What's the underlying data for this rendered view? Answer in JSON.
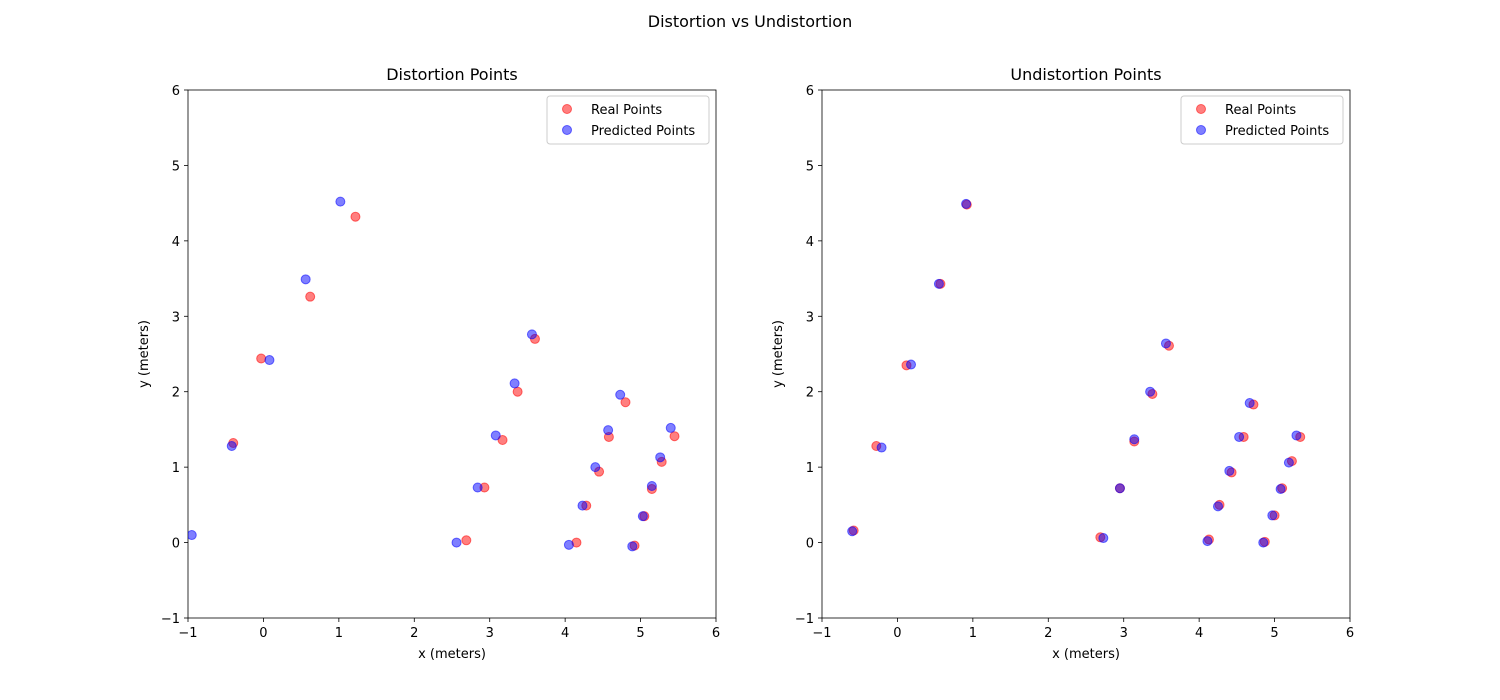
{
  "figure": {
    "suptitle": "Distortion vs Undistortion"
  },
  "chart_data": [
    {
      "type": "scatter",
      "title": "Distortion Points",
      "xlabel": "x (meters)",
      "ylabel": "y (meters)",
      "xlim": [
        -1,
        6
      ],
      "ylim": [
        -1,
        6
      ],
      "xticks": [
        "−1",
        "0",
        "1",
        "2",
        "3",
        "4",
        "5",
        "6"
      ],
      "yticks": [
        "−1",
        "0",
        "1",
        "2",
        "3",
        "4",
        "5",
        "6"
      ],
      "grid": false,
      "legend_position": "top-right",
      "series": [
        {
          "name": "Real Points",
          "color": "#ff0000",
          "points": [
            [
              -0.4,
              1.32
            ],
            [
              -0.03,
              2.44
            ],
            [
              0.62,
              3.26
            ],
            [
              1.22,
              4.32
            ],
            [
              2.69,
              0.03
            ],
            [
              2.93,
              0.73
            ],
            [
              3.17,
              1.36
            ],
            [
              3.37,
              2.0
            ],
            [
              3.6,
              2.7
            ],
            [
              4.15,
              0.0
            ],
            [
              4.28,
              0.49
            ],
            [
              4.45,
              0.94
            ],
            [
              4.58,
              1.4
            ],
            [
              4.8,
              1.86
            ],
            [
              4.92,
              -0.04
            ],
            [
              5.05,
              0.35
            ],
            [
              5.15,
              0.71
            ],
            [
              5.28,
              1.07
            ],
            [
              5.45,
              1.41
            ]
          ]
        },
        {
          "name": "Predicted Points",
          "color": "#0000ff",
          "points": [
            [
              -0.95,
              0.1
            ],
            [
              -0.42,
              1.28
            ],
            [
              0.08,
              2.42
            ],
            [
              0.56,
              3.49
            ],
            [
              1.02,
              4.52
            ],
            [
              2.56,
              0.0
            ],
            [
              2.84,
              0.73
            ],
            [
              3.08,
              1.42
            ],
            [
              3.33,
              2.11
            ],
            [
              3.56,
              2.76
            ],
            [
              4.05,
              -0.03
            ],
            [
              4.23,
              0.49
            ],
            [
              4.4,
              1.0
            ],
            [
              4.57,
              1.49
            ],
            [
              4.73,
              1.96
            ],
            [
              4.89,
              -0.05
            ],
            [
              5.03,
              0.35
            ],
            [
              5.15,
              0.75
            ],
            [
              5.26,
              1.13
            ],
            [
              5.4,
              1.52
            ]
          ]
        }
      ]
    },
    {
      "type": "scatter",
      "title": "Undistortion Points",
      "xlabel": "x (meters)",
      "ylabel": "y (meters)",
      "xlim": [
        -1,
        6
      ],
      "ylim": [
        -1,
        6
      ],
      "xticks": [
        "−1",
        "0",
        "1",
        "2",
        "3",
        "4",
        "5",
        "6"
      ],
      "yticks": [
        "−1",
        "0",
        "1",
        "2",
        "3",
        "4",
        "5",
        "6"
      ],
      "grid": false,
      "legend_position": "top-right",
      "series": [
        {
          "name": "Real Points",
          "color": "#ff0000",
          "points": [
            [
              -0.58,
              0.16
            ],
            [
              -0.28,
              1.28
            ],
            [
              0.12,
              2.35
            ],
            [
              0.57,
              3.43
            ],
            [
              0.92,
              4.48
            ],
            [
              2.69,
              0.07
            ],
            [
              2.95,
              0.72
            ],
            [
              3.14,
              1.34
            ],
            [
              3.38,
              1.97
            ],
            [
              3.6,
              2.61
            ],
            [
              4.13,
              0.04
            ],
            [
              4.27,
              0.5
            ],
            [
              4.43,
              0.93
            ],
            [
              4.59,
              1.4
            ],
            [
              4.72,
              1.83
            ],
            [
              4.87,
              0.01
            ],
            [
              5.0,
              0.36
            ],
            [
              5.1,
              0.72
            ],
            [
              5.23,
              1.08
            ],
            [
              5.34,
              1.4
            ]
          ]
        },
        {
          "name": "Predicted Points",
          "color": "#0000ff",
          "points": [
            [
              -0.6,
              0.15
            ],
            [
              -0.21,
              1.26
            ],
            [
              0.18,
              2.36
            ],
            [
              0.55,
              3.43
            ],
            [
              0.91,
              4.49
            ],
            [
              2.73,
              0.06
            ],
            [
              2.95,
              0.72
            ],
            [
              3.14,
              1.37
            ],
            [
              3.35,
              2.0
            ],
            [
              3.56,
              2.64
            ],
            [
              4.11,
              0.02
            ],
            [
              4.25,
              0.48
            ],
            [
              4.4,
              0.95
            ],
            [
              4.53,
              1.4
            ],
            [
              4.67,
              1.85
            ],
            [
              4.85,
              0.0
            ],
            [
              4.97,
              0.36
            ],
            [
              5.08,
              0.71
            ],
            [
              5.19,
              1.06
            ],
            [
              5.29,
              1.42
            ]
          ]
        }
      ]
    }
  ]
}
